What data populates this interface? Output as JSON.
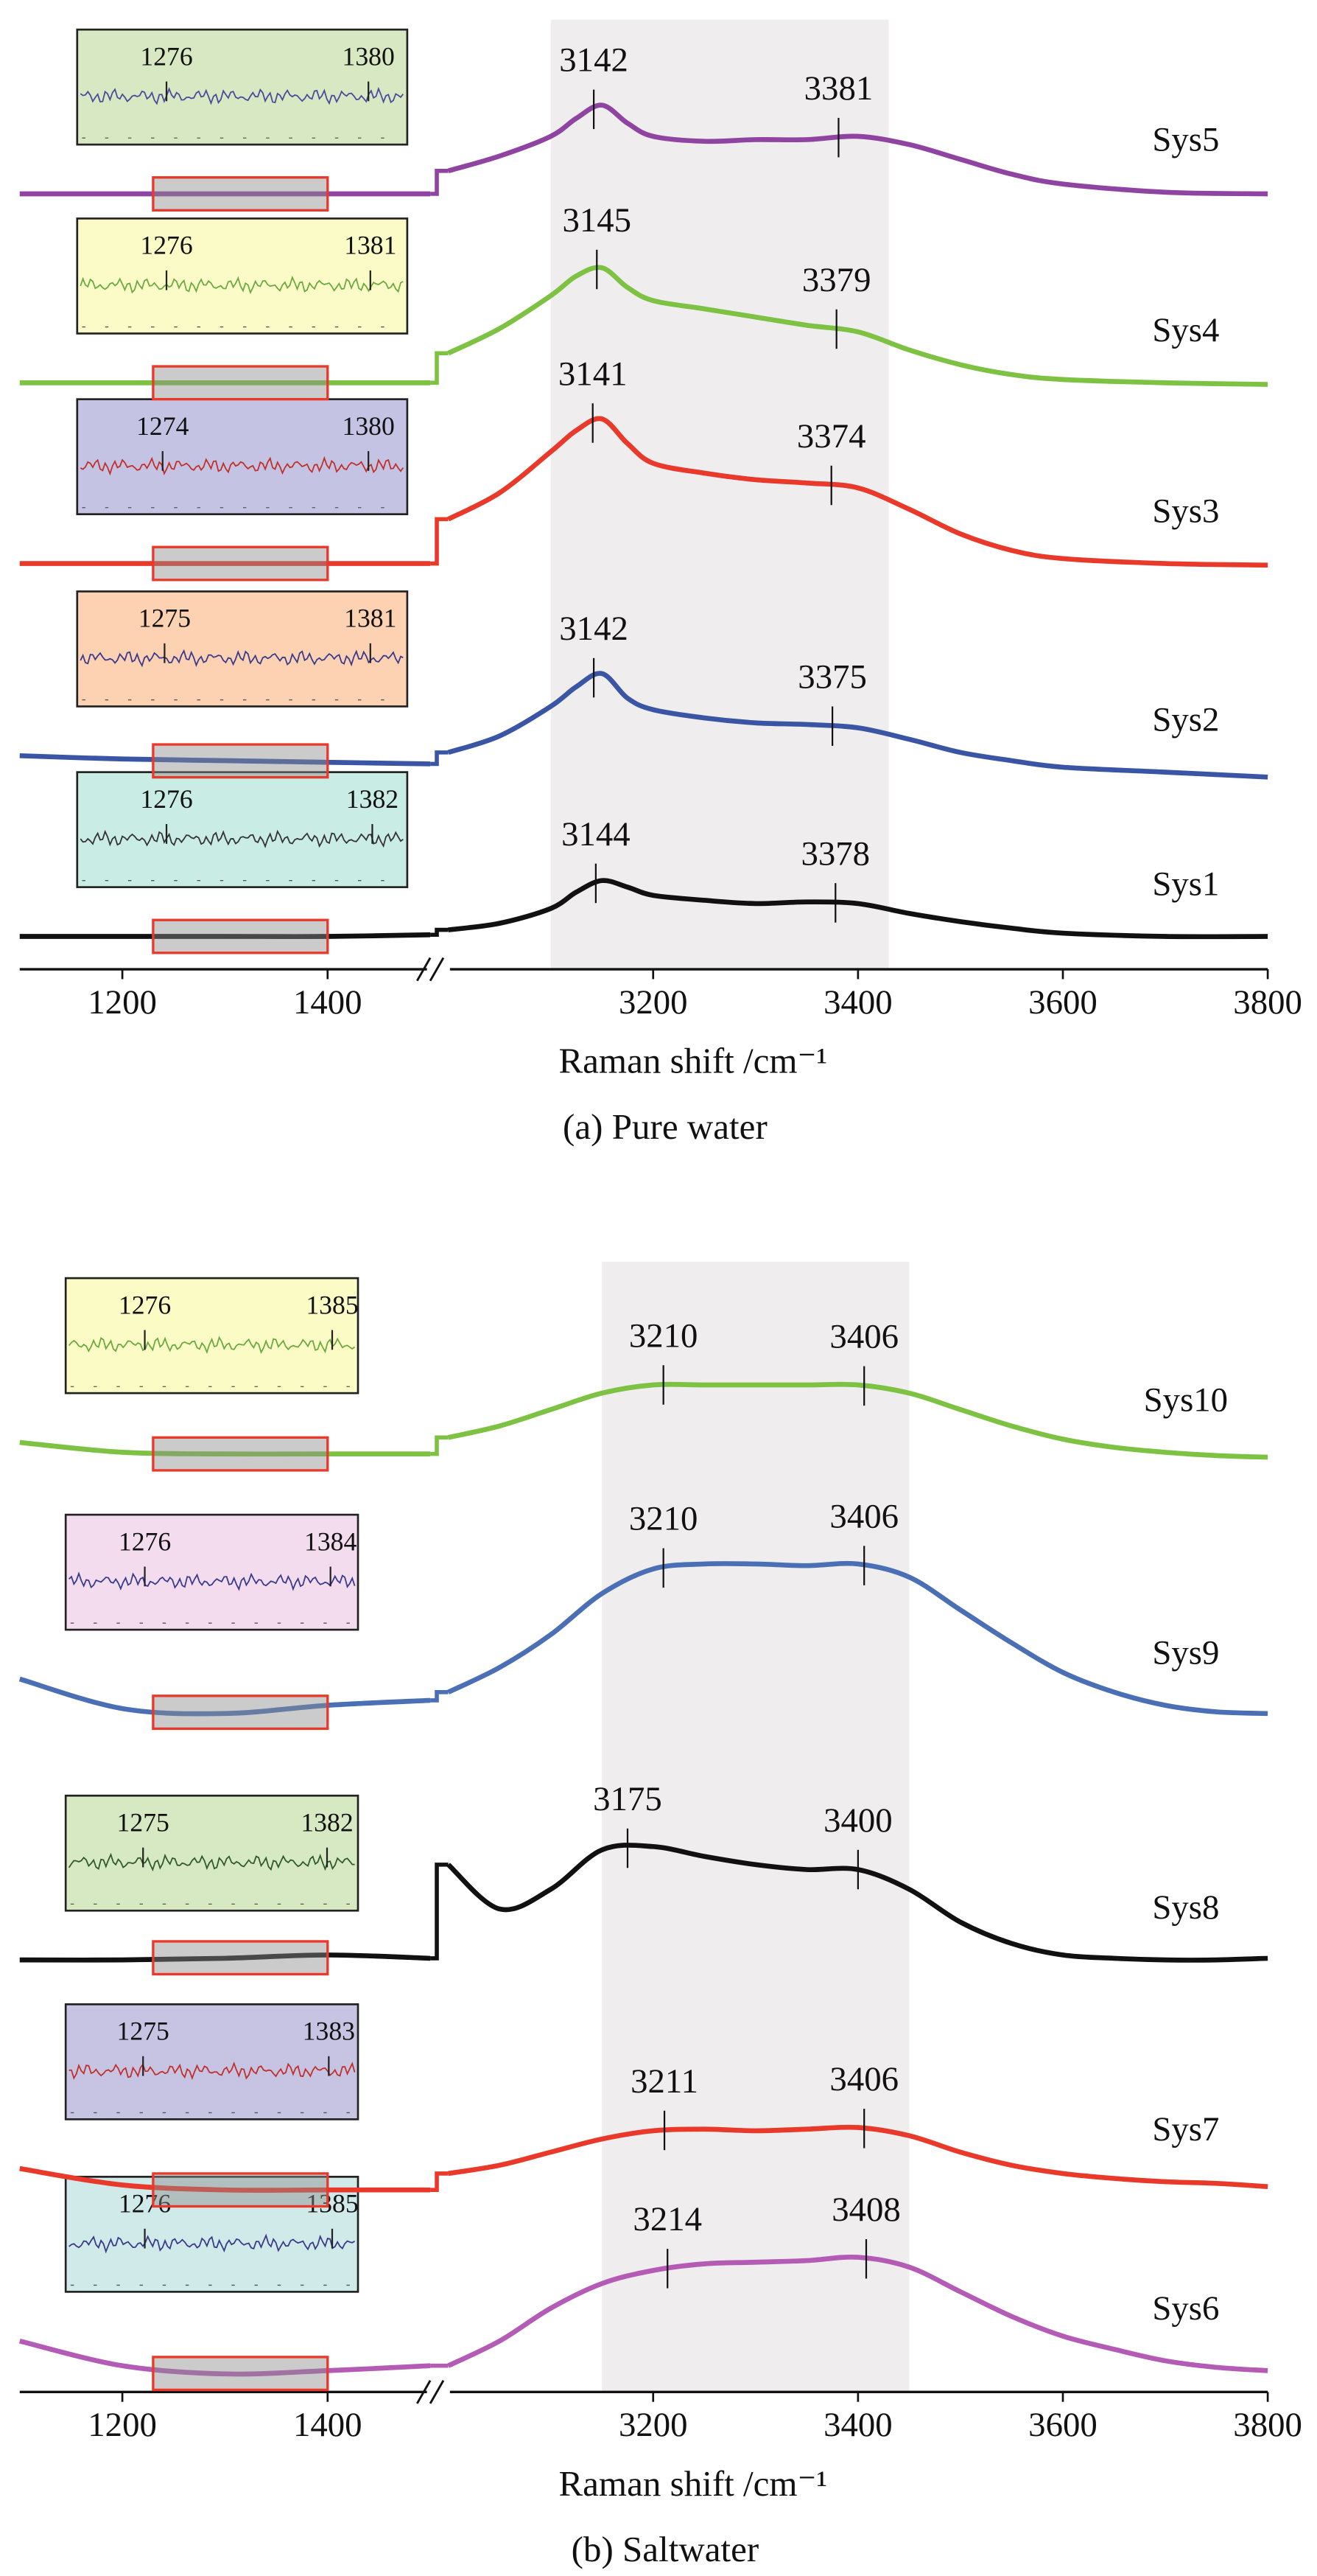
{
  "chart_data": [
    {
      "type": "line",
      "x_label": "Raman shift /cm⁻¹",
      "caption": "(a) Pure water",
      "x": [
        1100,
        1200,
        1300,
        1400,
        1500,
        3000,
        3050,
        3100,
        3125,
        3150,
        3175,
        3200,
        3250,
        3300,
        3350,
        3400,
        3450,
        3500,
        3550,
        3600,
        3700,
        3800
      ],
      "xlim": [
        1100,
        3800
      ],
      "axis_break": [
        1500,
        3000
      ],
      "xticks": [
        1200,
        1400,
        3200,
        3400,
        3600,
        3800
      ],
      "ylim": [
        0,
        590
      ],
      "highlight": [
        3100,
        3430
      ],
      "inset_range": [
        1230,
        1400
      ],
      "series": [
        {
          "name": "Sys1",
          "color": "#111111",
          "values": [
            20,
            20,
            20,
            20,
            21,
            24,
            28,
            37,
            47,
            54,
            50,
            45,
            42,
            40,
            41,
            40,
            34,
            29,
            25,
            22,
            20,
            20
          ],
          "peaks": [
            3144,
            3378
          ],
          "inset": {
            "peaks": [
              1276,
              1382
            ],
            "color": "#333333",
            "background": "#c9ece4"
          }
        },
        {
          "name": "Sys2",
          "color": "#3a55a4",
          "values": [
            130,
            128,
            127,
            126,
            125,
            132,
            142,
            160,
            172,
            180,
            165,
            158,
            153,
            150,
            149,
            147,
            140,
            132,
            127,
            123,
            120,
            117
          ],
          "peaks": [
            3142,
            3375
          ],
          "inset": {
            "peaks": [
              1275,
              1381
            ],
            "color": "#3a3a8c",
            "background": "#fcd2b2"
          }
        },
        {
          "name": "Sys3",
          "color": "#e8392b",
          "values": [
            247,
            247,
            247,
            247,
            247,
            274,
            290,
            315,
            328,
            335,
            320,
            308,
            302,
            298,
            296,
            293,
            280,
            265,
            255,
            250,
            247,
            246
          ],
          "peaks": [
            3141,
            3374
          ],
          "inset": {
            "peaks": [
              1274,
              1380
            ],
            "color": "#c0302a",
            "background": "#c5c3e3"
          }
        },
        {
          "name": "Sys4",
          "color": "#7dc242",
          "values": [
            357,
            357,
            357,
            357,
            357,
            375,
            390,
            410,
            422,
            427,
            415,
            407,
            402,
            397,
            392,
            388,
            377,
            368,
            362,
            359,
            357,
            356
          ],
          "peaks": [
            3145,
            3379
          ],
          "inset": {
            "peaks": [
              1276,
              1381
            ],
            "color": "#6aaa40",
            "background": "#fbfbc7"
          }
        },
        {
          "name": "Sys5",
          "color": "#8e44a0",
          "values": [
            472,
            472,
            472,
            472,
            472,
            486,
            495,
            507,
            518,
            526,
            515,
            507,
            504,
            505,
            505,
            507,
            502,
            493,
            484,
            478,
            473,
            472
          ],
          "peaks": [
            3142,
            3381
          ],
          "inset": {
            "peaks": [
              1276,
              1380
            ],
            "color": "#4a4a9c",
            "background": "#d8e8c2"
          }
        }
      ]
    },
    {
      "type": "line",
      "x_label": "Raman shift /cm⁻¹",
      "caption": "(b) Saltwater",
      "x": [
        1100,
        1200,
        1300,
        1400,
        1500,
        3000,
        3050,
        3100,
        3150,
        3200,
        3250,
        3300,
        3350,
        3400,
        3450,
        3500,
        3550,
        3600,
        3650,
        3700,
        3750,
        3800
      ],
      "xlim": [
        1100,
        3800
      ],
      "axis_break": [
        1500,
        3000
      ],
      "xticks": [
        1200,
        1400,
        3200,
        3400,
        3600,
        3800
      ],
      "ylim": [
        0,
        700
      ],
      "highlight": [
        3150,
        3450
      ],
      "inset_range": [
        1230,
        1400
      ],
      "series": [
        {
          "name": "Sys6",
          "color": "#b35bb5",
          "values": [
            31,
            16,
            11,
            13,
            16,
            16,
            31,
            51,
            66,
            74,
            78,
            79,
            80,
            82,
            76,
            61,
            46,
            34,
            26,
            19,
            15,
            13
          ],
          "peaks": [
            3214,
            3408
          ],
          "inset": {
            "peaks": [
              1276,
              1385
            ],
            "color": "#3a3a8c",
            "background": "#cfeae8"
          }
        },
        {
          "name": "Sys7",
          "color": "#e8392b",
          "values": [
            136,
            126,
            123,
            123,
            123,
            133,
            138,
            146,
            154,
            159,
            160,
            159,
            160,
            161,
            156,
            146,
            138,
            133,
            130,
            128,
            127,
            125
          ],
          "peaks": [
            3211,
            3406
          ],
          "inset": {
            "peaks": [
              1275,
              1383
            ],
            "color": "#c0302a",
            "background": "#c7c4e3"
          }
        },
        {
          "name": "Sys8",
          "color": "#111111",
          "values": [
            263,
            263,
            264,
            266,
            264,
            321,
            294,
            306,
            330,
            332,
            326,
            321,
            318,
            318,
            306,
            286,
            273,
            266,
            264,
            263,
            263,
            264
          ],
          "peaks": [
            3175,
            3400
          ],
          "inset": {
            "peaks": [
              1275,
              1382
            ],
            "color": "#2f5a2a",
            "background": "#d6e9c2"
          }
        },
        {
          "name": "Sys9",
          "color": "#4a6fb5",
          "values": [
            434,
            416,
            413,
            418,
            421,
            426,
            441,
            461,
            486,
            501,
            504,
            504,
            503,
            504,
            496,
            476,
            456,
            438,
            426,
            418,
            414,
            413
          ],
          "peaks": [
            3210,
            3406
          ],
          "inset": {
            "peaks": [
              1276,
              1384
            ],
            "color": "#3a3a8c",
            "background": "#f4dcef"
          }
        },
        {
          "name": "Sys10",
          "color": "#7dc242",
          "values": [
            578,
            572,
            571,
            571,
            571,
            581,
            588,
            598,
            608,
            613,
            613,
            613,
            613,
            613,
            608,
            598,
            588,
            580,
            575,
            572,
            570,
            569
          ],
          "peaks": [
            3210,
            3406
          ],
          "inset": {
            "peaks": [
              1276,
              1385
            ],
            "color": "#6aaa40",
            "background": "#fbfbc5"
          }
        }
      ]
    }
  ]
}
